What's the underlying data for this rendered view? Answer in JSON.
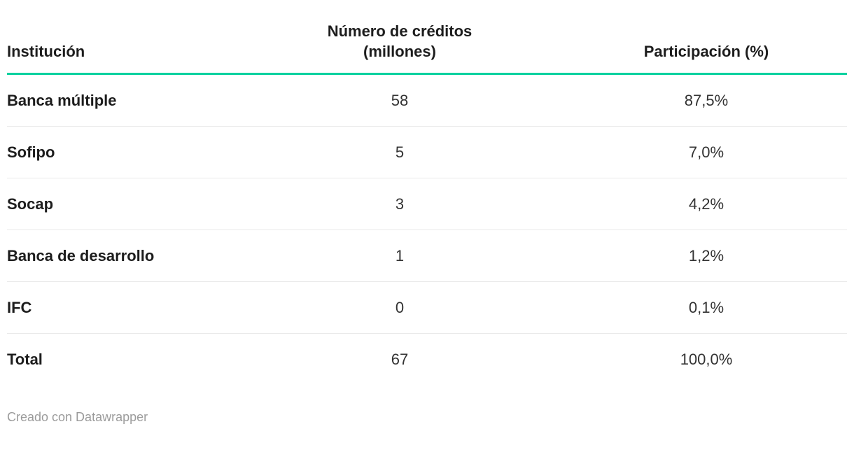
{
  "chart_data": {
    "type": "table",
    "columns": [
      "Institución",
      "Número de créditos (millones)",
      "Participación (%)"
    ],
    "rows": [
      [
        "Banca múltiple",
        58,
        "87,5%"
      ],
      [
        "Sofipo",
        5,
        "7,0%"
      ],
      [
        "Socap",
        3,
        "4,2%"
      ],
      [
        "Banca de desarrollo",
        1,
        "1,2%"
      ],
      [
        "IFC",
        0,
        "0,1%"
      ],
      [
        "Total",
        67,
        "100,0%"
      ]
    ],
    "credit_values_millions": [
      58,
      5,
      3,
      1,
      0,
      67
    ],
    "share_values_pct": [
      87.5,
      7.0,
      4.2,
      1.2,
      0.1,
      100.0
    ]
  },
  "header": {
    "institution": "Institución",
    "credits_line1": "Número de créditos",
    "credits_line2": "(millones)",
    "share": "Participación (%)"
  },
  "rows": [
    {
      "institution": "Banca múltiple",
      "credits": "58",
      "share": "87,5%"
    },
    {
      "institution": "Sofipo",
      "credits": "5",
      "share": "7,0%"
    },
    {
      "institution": "Socap",
      "credits": "3",
      "share": "4,2%"
    },
    {
      "institution": "Banca de desarrollo",
      "credits": "1",
      "share": "1,2%"
    },
    {
      "institution": "IFC",
      "credits": "0",
      "share": "0,1%"
    },
    {
      "institution": "Total",
      "credits": "67",
      "share": "100,0%"
    }
  ],
  "footer": {
    "attribution": "Creado con Datawrapper"
  },
  "colors": {
    "accent_rule": "#06d19e",
    "row_divider": "#e9e9e9",
    "body_text": "#333333",
    "heading_text": "#1d1d1d",
    "footer_text": "#9b9b9b",
    "background": "#ffffff"
  }
}
